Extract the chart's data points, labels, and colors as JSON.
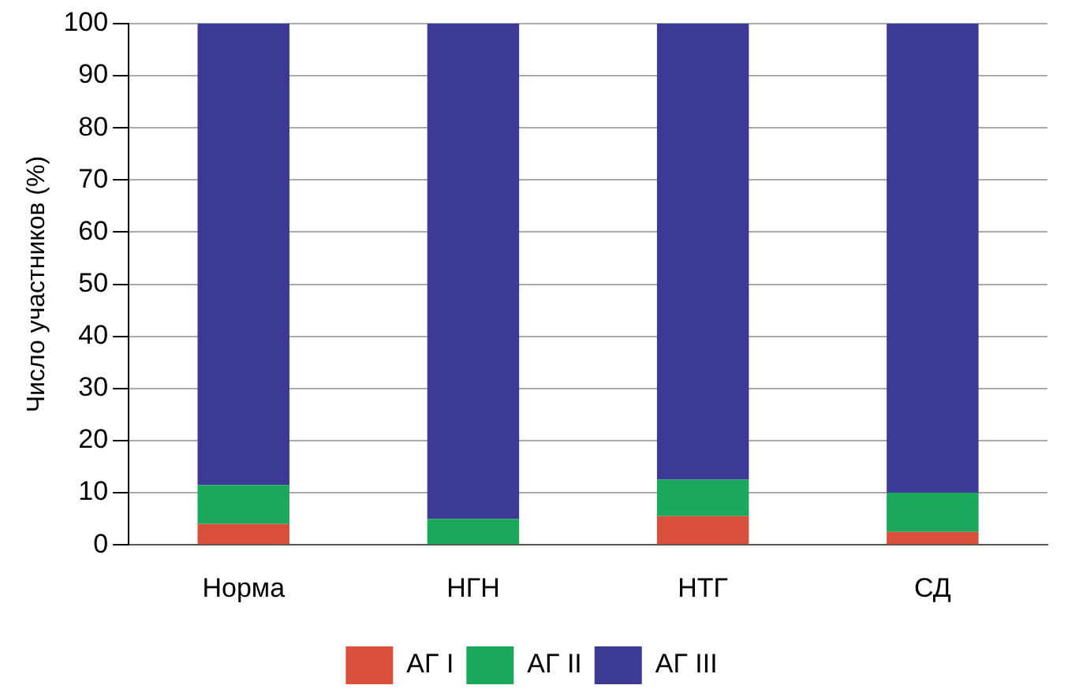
{
  "chart_data": {
    "type": "bar",
    "stacked": true,
    "ylabel": "Число участников (%)",
    "categories": [
      "Норма",
      "НГН",
      "НТГ",
      "СД"
    ],
    "series": [
      {
        "name": "АГ I",
        "color": "#d9503a",
        "values": [
          4,
          0,
          5.5,
          2.5
        ]
      },
      {
        "name": "АГ II",
        "color": "#1aa85a",
        "values": [
          7.5,
          5,
          7,
          7.5
        ]
      },
      {
        "name": "АГ III",
        "color": "#3d3a96",
        "values": [
          88.5,
          95,
          87.5,
          90
        ]
      }
    ],
    "ylim": [
      0,
      100
    ],
    "yticks": [
      0,
      10,
      20,
      30,
      40,
      50,
      60,
      70,
      80,
      90,
      100
    ],
    "grid": "y",
    "legend": "bottom"
  }
}
